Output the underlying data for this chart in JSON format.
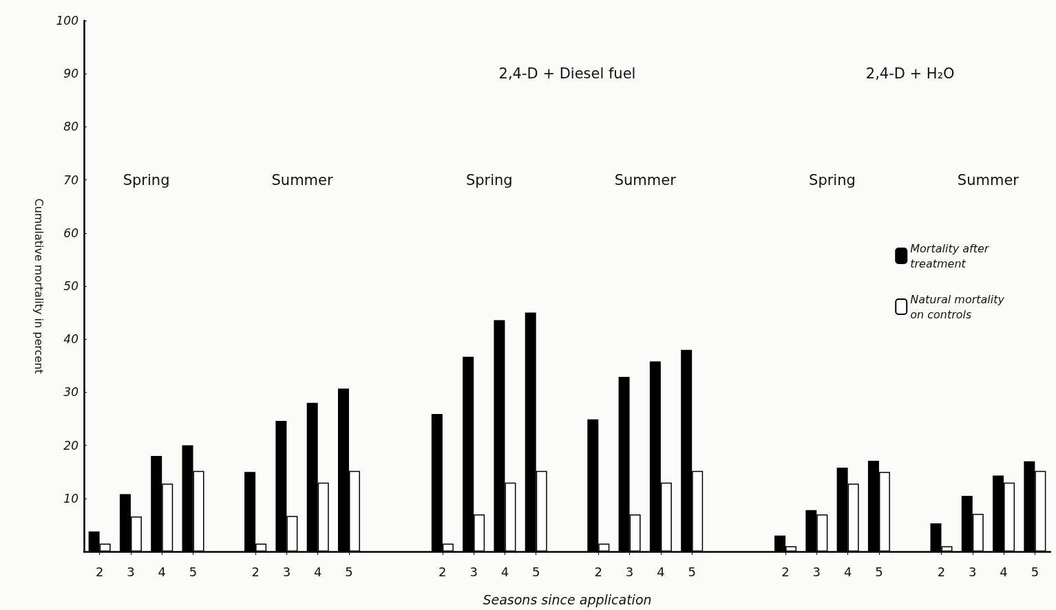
{
  "chart_data": {
    "type": "bar",
    "xlabel": "Seasons since application",
    "ylabel": "Cumulative mortality in percent",
    "categories": [
      "2",
      "3",
      "4",
      "5",
      null,
      "2",
      "3",
      "4",
      "5",
      null,
      null,
      "2",
      "3",
      "4",
      "5",
      null,
      "2",
      "3",
      "4",
      "5",
      null,
      null,
      "2",
      "3",
      "4",
      "5",
      null,
      "2",
      "3",
      "4",
      "5"
    ],
    "series": [
      {
        "name": "Mortality after treatment",
        "color": "#000000",
        "values": [
          3.8,
          10.8,
          18,
          20,
          null,
          15,
          24.6,
          28,
          30.7,
          null,
          null,
          25.9,
          36.7,
          43.6,
          45,
          null,
          24.9,
          32.9,
          35.8,
          38,
          null,
          null,
          3,
          7.8,
          15.8,
          17.1,
          null,
          5.3,
          10.5,
          14.3,
          17
        ]
      },
      {
        "name": "Natural mortality on controls",
        "color": "#ffffff",
        "values": [
          1.5,
          6.6,
          12.8,
          15.2,
          null,
          1.5,
          6.7,
          13,
          15.2,
          null,
          null,
          1.5,
          7,
          13,
          15.2,
          null,
          1.5,
          7,
          13,
          15.2,
          null,
          null,
          1,
          7,
          12.8,
          15,
          null,
          1,
          7.1,
          13,
          15.2
        ]
      }
    ],
    "ylim": [
      0,
      100
    ],
    "yticks": [
      10,
      20,
      30,
      40,
      50,
      60,
      70,
      80,
      90,
      100
    ],
    "grid": false,
    "legend": "right",
    "annotations": [
      "2,4-D + Diesel fuel",
      "2,4-D + H₂O",
      "Spring",
      "Summer",
      "Spring",
      "Summer",
      "Spring",
      "Summer"
    ]
  }
}
